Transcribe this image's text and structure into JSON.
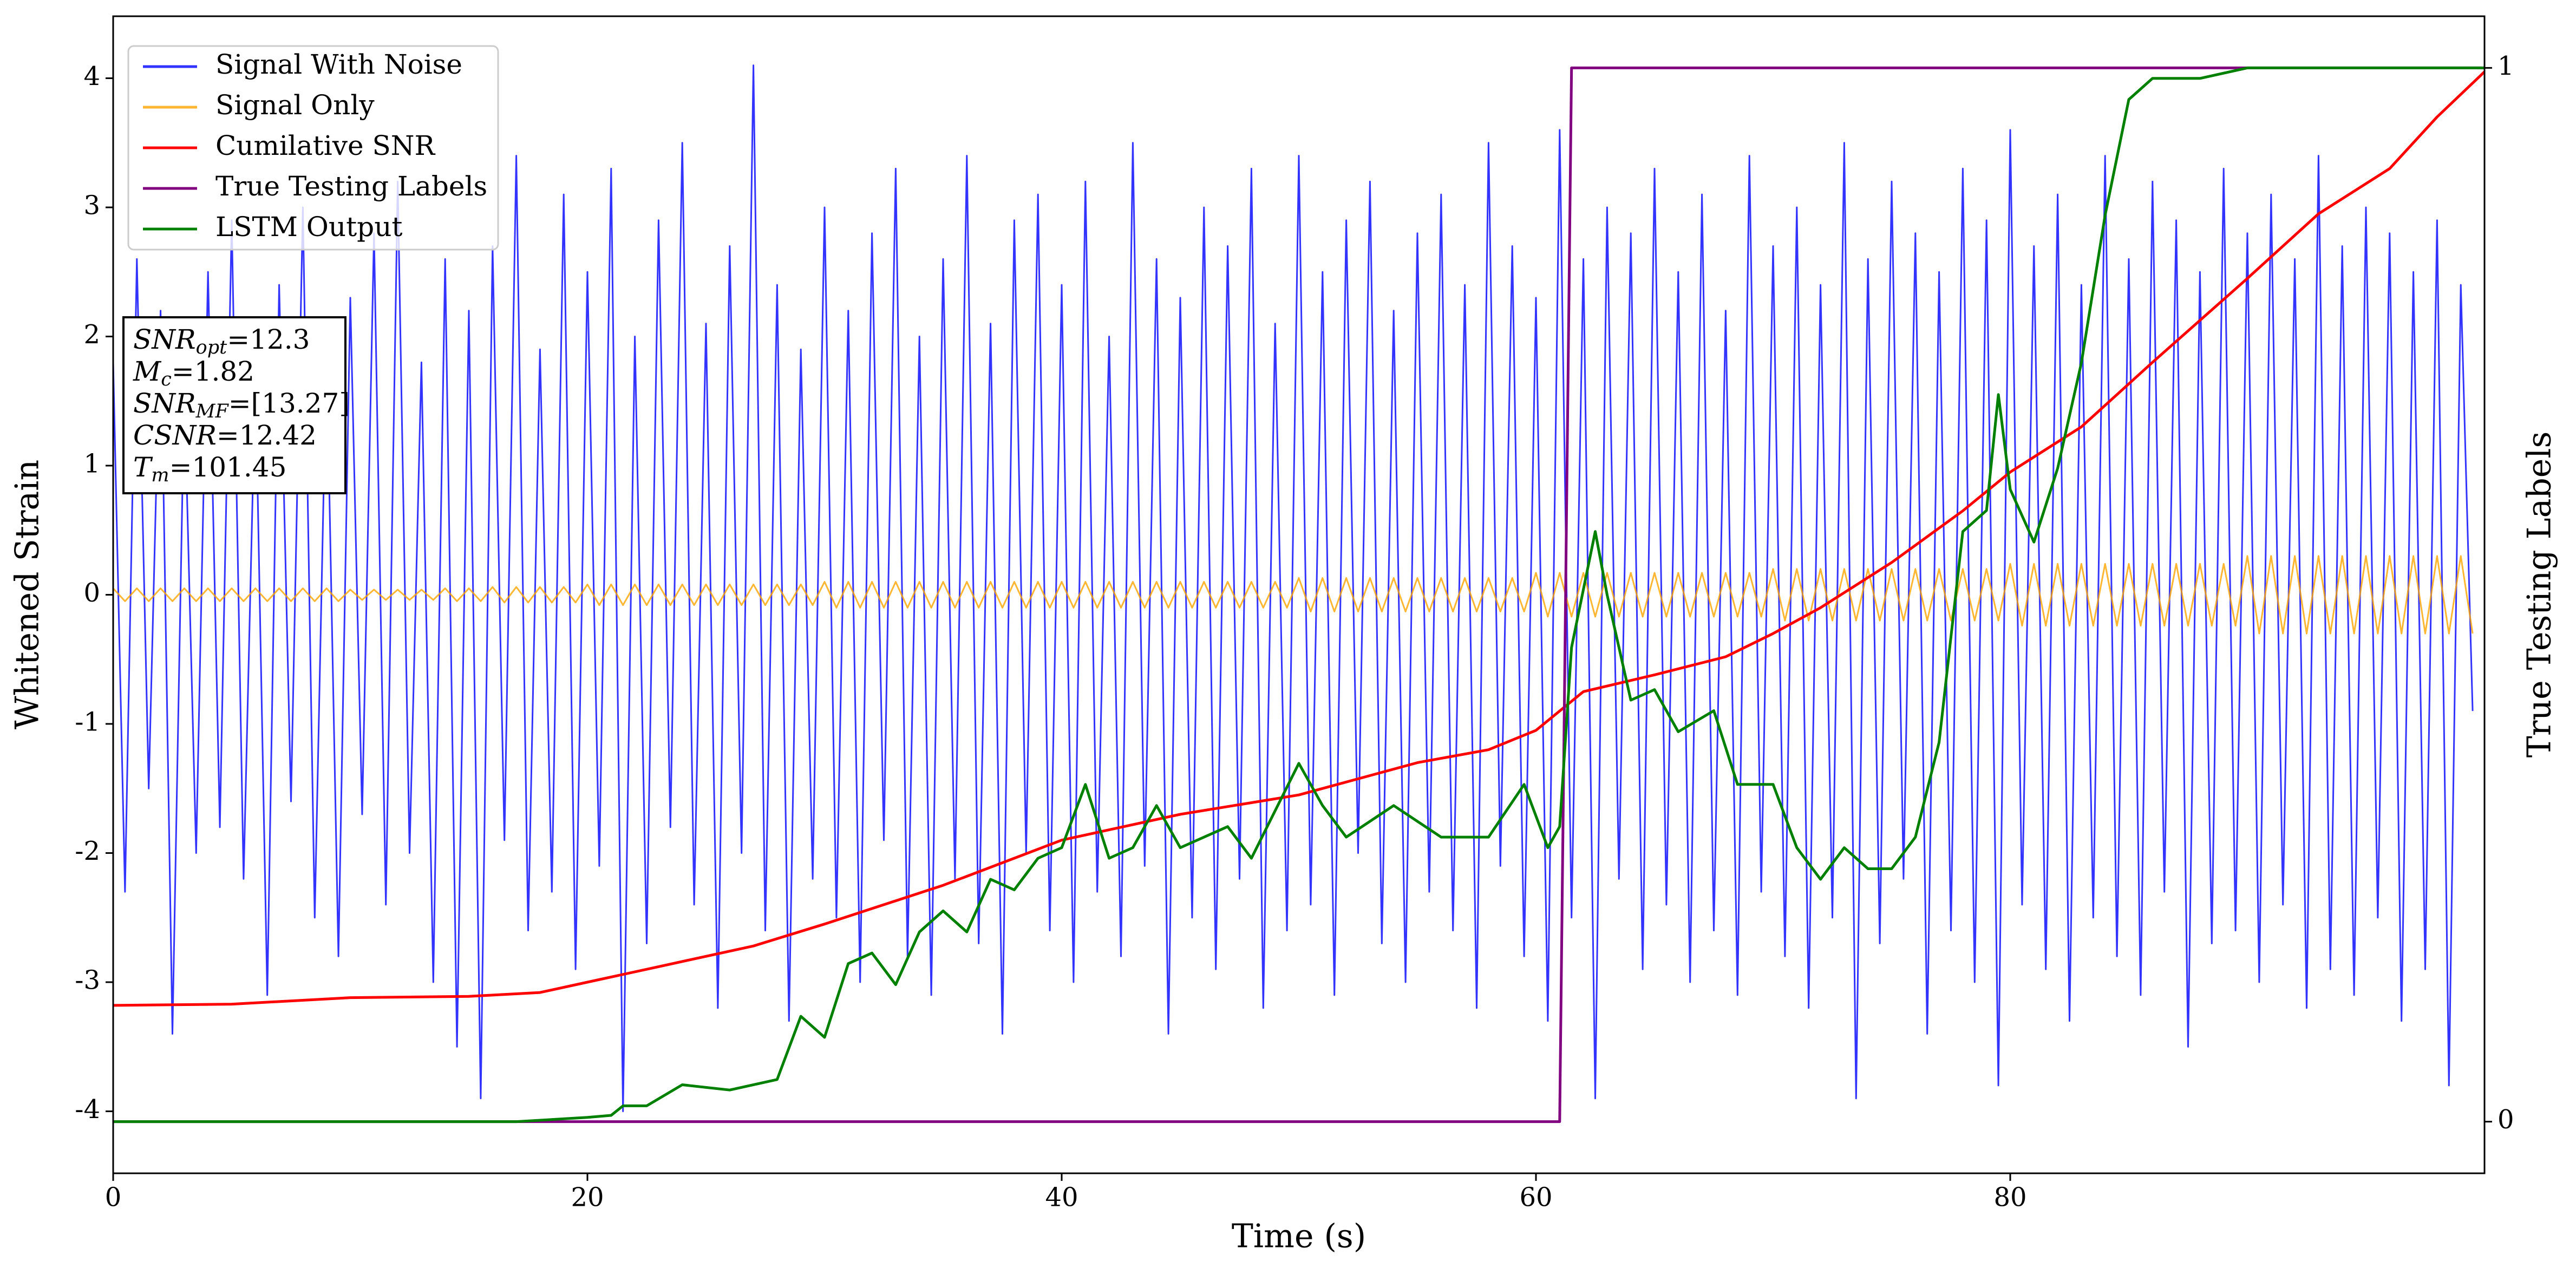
{
  "chart_data": {
    "type": "line",
    "xlabel": "Time (s)",
    "ylabel": "Whitened Strain",
    "y2label": "True Testing Labels",
    "xlim": [
      0,
      100
    ],
    "xticks": [
      0,
      20,
      40,
      60,
      80
    ],
    "ylim": [
      -4.48,
      4.48
    ],
    "yticks": [
      -4,
      -3,
      -2,
      -1,
      0,
      1,
      2,
      3,
      4
    ],
    "y2lim": [
      -0.049,
      1.049
    ],
    "y2ticks": [
      0,
      1
    ],
    "legend": "upper left",
    "x": [
      0,
      0.5,
      1,
      1.5,
      2,
      2.5,
      3,
      3.5,
      4,
      4.5,
      5,
      5.5,
      6,
      6.5,
      7,
      7.5,
      8,
      8.5,
      9,
      9.5,
      10,
      10.5,
      11,
      11.5,
      12,
      12.5,
      13,
      13.5,
      14,
      14.5,
      15,
      15.5,
      16,
      16.5,
      17,
      17.5,
      18,
      18.5,
      19,
      19.5,
      20,
      20.5,
      21,
      21.5,
      22,
      22.5,
      23,
      23.5,
      24,
      24.5,
      25,
      25.5,
      26,
      26.5,
      27,
      27.5,
      28,
      28.5,
      29,
      29.5,
      30,
      30.5,
      31,
      31.5,
      32,
      32.5,
      33,
      33.5,
      34,
      34.5,
      35,
      35.5,
      36,
      36.5,
      37,
      37.5,
      38,
      38.5,
      39,
      39.5,
      40,
      40.5,
      41,
      41.5,
      42,
      42.5,
      43,
      43.5,
      44,
      44.5,
      45,
      45.5,
      46,
      46.5,
      47,
      47.5,
      48,
      48.5,
      49,
      49.5,
      50,
      50.5,
      51,
      51.5,
      52,
      52.5,
      53,
      53.5,
      54,
      54.5,
      55,
      55.5,
      56,
      56.5,
      57,
      57.5,
      58,
      58.5,
      59,
      59.5,
      60,
      60.5,
      61,
      61.5,
      62,
      62.5,
      63,
      63.5,
      64,
      64.5,
      65,
      65.5,
      66,
      66.5,
      67,
      67.5,
      68,
      68.5,
      69,
      69.5,
      70,
      70.5,
      71,
      71.5,
      72,
      72.5,
      73,
      73.5,
      74,
      74.5,
      75,
      75.5,
      76,
      76.5,
      77,
      77.5,
      78,
      78.5,
      79,
      79.5,
      80,
      80.5,
      81,
      81.5,
      82,
      82.5,
      83,
      83.5,
      84,
      84.5,
      85,
      85.5,
      86,
      86.5,
      87,
      87.5,
      88,
      88.5,
      89,
      89.5,
      90,
      90.5,
      91,
      91.5,
      92,
      92.5,
      93,
      93.5,
      94,
      94.5,
      95,
      95.5,
      96,
      96.5,
      97,
      97.5,
      98,
      98.5,
      99,
      99.5
    ],
    "series": [
      {
        "name": "Signal With Noise",
        "color": "#0000ff",
        "alpha": 0.8,
        "width": 3,
        "values": [
          1.8,
          -2.3,
          2.6,
          -1.5,
          2.2,
          -3.4,
          1.6,
          -2.0,
          2.5,
          -1.8,
          2.9,
          -2.2,
          1.7,
          -3.1,
          2.4,
          -1.6,
          3.0,
          -2.5,
          1.9,
          -2.8,
          2.3,
          -1.7,
          2.8,
          -2.4,
          3.2,
          -2.0,
          1.8,
          -3.0,
          2.6,
          -3.5,
          2.2,
          -3.9,
          2.7,
          -1.9,
          3.4,
          -2.6,
          1.9,
          -2.3,
          3.1,
          -2.9,
          2.5,
          -2.1,
          3.3,
          -4.0,
          2.0,
          -2.7,
          2.9,
          -1.8,
          3.5,
          -2.4,
          2.1,
          -3.2,
          2.7,
          -2.0,
          4.1,
          -2.6,
          2.4,
          -3.3,
          1.9,
          -2.2,
          3.0,
          -2.5,
          2.2,
          -3.0,
          2.8,
          -1.9,
          3.3,
          -2.8,
          2.0,
          -3.1,
          2.6,
          -2.2,
          3.4,
          -2.7,
          2.1,
          -3.4,
          2.9,
          -2.0,
          3.1,
          -2.6,
          2.4,
          -3.0,
          3.2,
          -2.3,
          2.0,
          -2.8,
          3.5,
          -2.1,
          2.6,
          -3.4,
          2.3,
          -2.5,
          3.0,
          -2.9,
          2.7,
          -2.2,
          3.3,
          -3.2,
          2.1,
          -2.6,
          3.4,
          -2.4,
          2.5,
          -3.1,
          2.9,
          -2.0,
          3.2,
          -2.7,
          2.2,
          -3.0,
          2.8,
          -2.3,
          3.1,
          -2.6,
          2.4,
          -3.2,
          3.5,
          -2.1,
          2.7,
          -2.8,
          2.3,
          -3.3,
          3.6,
          -2.5,
          2.6,
          -3.9,
          3.0,
          -2.2,
          2.8,
          -2.9,
          3.3,
          -2.4,
          2.5,
          -3.0,
          3.1,
          -2.6,
          2.2,
          -3.1,
          3.4,
          -2.3,
          2.7,
          -2.8,
          3.0,
          -3.2,
          2.4,
          -2.5,
          3.5,
          -3.9,
          2.6,
          -2.7,
          3.2,
          -2.2,
          2.8,
          -3.4,
          2.5,
          -2.6,
          3.3,
          -3.0,
          2.9,
          -3.8,
          3.6,
          -2.4,
          2.7,
          -2.9,
          3.1,
          -3.3,
          2.4,
          -2.5,
          3.4,
          -2.8,
          2.6,
          -3.1,
          3.2,
          -2.3,
          2.9,
          -3.5,
          2.5,
          -2.7,
          3.3,
          -2.6,
          2.8,
          -3.0,
          3.1,
          -2.4,
          2.6,
          -3.2,
          3.4,
          -2.9,
          2.7,
          -3.1,
          3.0,
          -2.5,
          2.8,
          -3.3,
          2.5,
          -2.9,
          2.9,
          -3.8,
          2.4,
          -0.9
        ]
      },
      {
        "name": "Signal Only",
        "color": "#ffa500",
        "alpha": 0.8,
        "width": 3,
        "values": [
          0.05,
          -0.05,
          0.05,
          -0.05,
          0.05,
          -0.05,
          0.05,
          -0.05,
          0.05,
          -0.05,
          0.05,
          -0.05,
          0.05,
          -0.05,
          0.05,
          -0.05,
          0.05,
          -0.05,
          0.05,
          -0.05,
          0.04,
          -0.04,
          0.04,
          -0.04,
          0.04,
          -0.04,
          0.04,
          -0.04,
          0.05,
          -0.05,
          0.05,
          -0.05,
          0.06,
          -0.06,
          0.06,
          -0.06,
          0.06,
          -0.06,
          0.06,
          -0.06,
          0.08,
          -0.08,
          0.08,
          -0.08,
          0.08,
          -0.08,
          0.08,
          -0.08,
          0.08,
          -0.08,
          0.08,
          -0.08,
          0.08,
          -0.08,
          0.08,
          -0.08,
          0.08,
          -0.08,
          0.08,
          -0.08,
          0.1,
          -0.1,
          0.1,
          -0.1,
          0.1,
          -0.1,
          0.1,
          -0.1,
          0.1,
          -0.1,
          0.1,
          -0.1,
          0.1,
          -0.1,
          0.1,
          -0.1,
          0.1,
          -0.1,
          0.1,
          -0.1,
          0.1,
          -0.1,
          0.1,
          -0.1,
          0.1,
          -0.1,
          0.1,
          -0.1,
          0.1,
          -0.1,
          0.1,
          -0.1,
          0.1,
          -0.1,
          0.1,
          -0.1,
          0.1,
          -0.1,
          0.1,
          -0.1,
          0.13,
          -0.13,
          0.13,
          -0.13,
          0.13,
          -0.13,
          0.13,
          -0.13,
          0.13,
          -0.13,
          0.13,
          -0.13,
          0.13,
          -0.13,
          0.13,
          -0.13,
          0.13,
          -0.13,
          0.13,
          -0.13,
          0.17,
          -0.17,
          0.17,
          -0.17,
          0.17,
          -0.17,
          0.17,
          -0.17,
          0.17,
          -0.17,
          0.17,
          -0.17,
          0.17,
          -0.17,
          0.17,
          -0.17,
          0.17,
          -0.17,
          0.17,
          -0.17,
          0.2,
          -0.2,
          0.2,
          -0.2,
          0.2,
          -0.2,
          0.2,
          -0.2,
          0.2,
          -0.2,
          0.2,
          -0.2,
          0.2,
          -0.2,
          0.2,
          -0.2,
          0.2,
          -0.2,
          0.2,
          -0.2,
          0.24,
          -0.24,
          0.24,
          -0.24,
          0.24,
          -0.24,
          0.24,
          -0.24,
          0.24,
          -0.24,
          0.24,
          -0.24,
          0.24,
          -0.24,
          0.24,
          -0.24,
          0.24,
          -0.24,
          0.24,
          -0.24,
          0.3,
          -0.3,
          0.3,
          -0.3,
          0.3,
          -0.3,
          0.3,
          -0.3,
          0.3,
          -0.3,
          0.3,
          -0.3,
          0.3,
          -0.3,
          0.3,
          -0.3,
          0.3,
          -0.3,
          0.3,
          -0.3
        ]
      },
      {
        "name": "Cumilative SNR",
        "color": "#ff0000",
        "width": 5,
        "x": [
          0,
          5,
          10,
          15,
          18,
          20,
          23,
          27,
          30,
          35,
          40,
          45,
          50,
          55,
          58,
          60,
          62,
          65,
          68,
          70,
          72,
          75,
          78,
          80,
          83,
          86,
          90,
          93,
          96,
          98,
          100
        ],
        "values": [
          -3.18,
          -3.17,
          -3.12,
          -3.11,
          -3.08,
          -3.0,
          -2.88,
          -2.72,
          -2.55,
          -2.25,
          -1.9,
          -1.7,
          -1.55,
          -1.3,
          -1.2,
          -1.05,
          -0.75,
          -0.62,
          -0.48,
          -0.3,
          -0.1,
          0.25,
          0.65,
          0.95,
          1.3,
          1.8,
          2.45,
          2.95,
          3.3,
          3.7,
          4.05
        ]
      },
      {
        "name": "True Testing Labels",
        "color": "#800080",
        "width": 5,
        "axis": "y2",
        "x": [
          0,
          61,
          61.5,
          100
        ],
        "values": [
          0,
          0,
          1,
          1
        ]
      },
      {
        "name": "LSTM Output",
        "color": "#008000",
        "width": 5,
        "axis": "y2",
        "x": [
          0,
          17,
          20,
          21,
          21.5,
          22.5,
          24,
          26,
          28,
          29,
          30,
          31,
          32,
          33,
          34,
          35,
          36,
          37,
          38,
          39,
          40,
          41,
          42,
          43,
          44,
          45,
          47,
          48,
          50,
          51,
          52,
          54,
          56,
          58,
          59.5,
          60.5,
          61,
          61.5,
          62.5,
          63,
          64,
          65,
          66,
          67.5,
          68.5,
          70,
          71,
          72,
          73,
          74,
          75,
          76,
          77,
          78,
          79,
          79.5,
          80,
          81,
          82,
          83,
          84,
          85,
          86,
          87,
          88,
          90,
          100
        ],
        "values": [
          0,
          0,
          0.004,
          0.006,
          0.015,
          0.015,
          0.035,
          0.03,
          0.04,
          0.1,
          0.08,
          0.15,
          0.16,
          0.13,
          0.18,
          0.2,
          0.18,
          0.23,
          0.22,
          0.25,
          0.26,
          0.32,
          0.25,
          0.26,
          0.3,
          0.26,
          0.28,
          0.25,
          0.34,
          0.3,
          0.27,
          0.3,
          0.27,
          0.27,
          0.32,
          0.26,
          0.28,
          0.45,
          0.56,
          0.5,
          0.4,
          0.41,
          0.37,
          0.39,
          0.32,
          0.32,
          0.26,
          0.23,
          0.26,
          0.24,
          0.24,
          0.27,
          0.36,
          0.56,
          0.58,
          0.69,
          0.6,
          0.55,
          0.62,
          0.72,
          0.86,
          0.97,
          0.99,
          0.99,
          0.99,
          1.0,
          1.0
        ]
      }
    ],
    "annotations": [
      {
        "var": "SNR",
        "sub": "opt",
        "text": "=12.3"
      },
      {
        "var": "M",
        "sub": "c",
        "text": "=1.82"
      },
      {
        "var": "SNR",
        "sub": "MF",
        "text": "=[13.27]"
      },
      {
        "var": "CSNR",
        "text": "=12.42"
      },
      {
        "var": "T",
        "sub": "m",
        "text": "=101.45"
      }
    ]
  }
}
